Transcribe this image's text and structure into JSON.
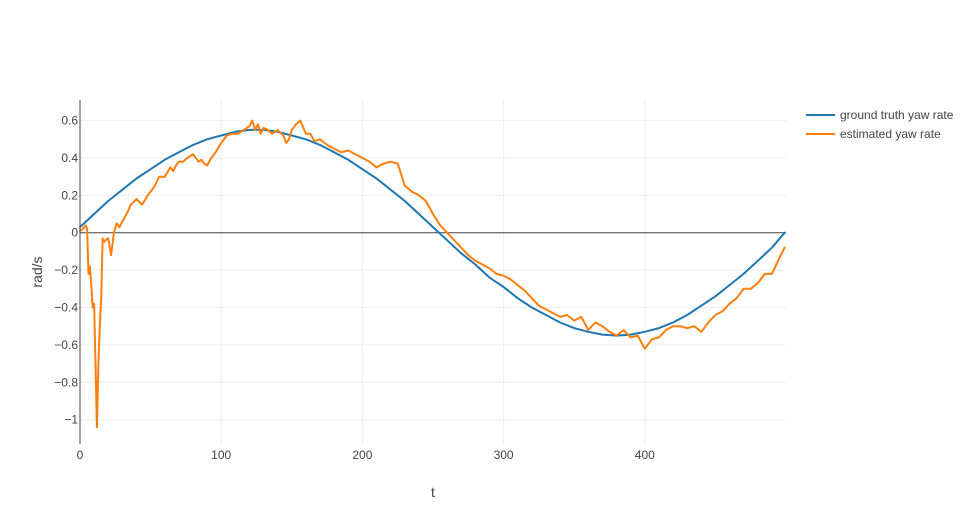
{
  "chart_data": {
    "type": "line",
    "xlabel": "t",
    "ylabel": "rad/s",
    "xlim": [
      0,
      500
    ],
    "ylim": [
      -1.13,
      0.71
    ],
    "x_ticks": [
      0,
      100,
      200,
      300,
      400
    ],
    "x_tick_labels": [
      "0",
      "100",
      "200",
      "300",
      "400"
    ],
    "y_ticks": [
      0.6,
      0.4,
      0.2,
      0,
      -0.2,
      -0.4,
      -0.6,
      -0.8,
      -1
    ],
    "y_tick_labels": [
      "0.6",
      "0.4",
      "0.2",
      "0",
      "−0.2",
      "−0.4",
      "−0.6",
      "−0.8",
      "−1"
    ],
    "grid": true,
    "legend": "top-right",
    "series": [
      {
        "name": "ground truth yaw rate",
        "color": "#1f77b4",
        "x": [
          0,
          10,
          20,
          30,
          40,
          50,
          60,
          70,
          80,
          90,
          100,
          110,
          120,
          130,
          140,
          150,
          160,
          170,
          180,
          190,
          200,
          210,
          220,
          230,
          240,
          250,
          260,
          270,
          280,
          290,
          300,
          310,
          320,
          330,
          340,
          350,
          360,
          370,
          380,
          390,
          400,
          410,
          420,
          430,
          440,
          450,
          460,
          470,
          480,
          490,
          499
        ],
        "y": [
          0.03,
          0.1,
          0.17,
          0.23,
          0.29,
          0.34,
          0.39,
          0.43,
          0.47,
          0.5,
          0.52,
          0.54,
          0.55,
          0.55,
          0.54,
          0.52,
          0.5,
          0.47,
          0.43,
          0.39,
          0.34,
          0.29,
          0.23,
          0.17,
          0.1,
          0.03,
          -0.04,
          -0.11,
          -0.17,
          -0.24,
          -0.29,
          -0.35,
          -0.4,
          -0.44,
          -0.48,
          -0.51,
          -0.53,
          -0.545,
          -0.55,
          -0.545,
          -0.53,
          -0.51,
          -0.48,
          -0.44,
          -0.39,
          -0.34,
          -0.28,
          -0.22,
          -0.15,
          -0.08,
          0
        ]
      },
      {
        "name": "estimated yaw rate",
        "color": "#ff7f0e",
        "x": [
          0,
          2,
          4,
          5,
          6,
          7,
          8,
          9,
          10,
          11,
          12,
          13,
          14,
          15,
          16,
          17,
          18,
          20,
          22,
          24,
          26,
          28,
          30,
          33,
          36,
          40,
          44,
          48,
          50,
          53,
          56,
          60,
          64,
          66,
          68,
          70,
          73,
          76,
          80,
          84,
          86,
          88,
          90,
          93,
          96,
          100,
          104,
          108,
          112,
          116,
          120,
          122,
          124,
          126,
          128,
          130,
          133,
          136,
          140,
          144,
          146,
          148,
          150,
          153,
          156,
          160,
          163,
          166,
          170,
          175,
          180,
          185,
          190,
          195,
          200,
          205,
          210,
          215,
          220,
          225,
          228,
          230,
          232,
          235,
          240,
          245,
          250,
          255,
          260,
          265,
          270,
          275,
          280,
          285,
          290,
          295,
          300,
          305,
          310,
          315,
          320,
          325,
          330,
          335,
          340,
          345,
          350,
          355,
          360,
          365,
          370,
          375,
          380,
          385,
          390,
          395,
          400,
          405,
          410,
          415,
          420,
          425,
          430,
          435,
          440,
          445,
          450,
          455,
          460,
          465,
          470,
          475,
          480,
          485,
          490,
          495,
          499
        ],
        "y": [
          0.01,
          0.02,
          0.04,
          0.02,
          -0.22,
          -0.18,
          -0.28,
          -0.4,
          -0.38,
          -0.7,
          -1.04,
          -0.7,
          -0.5,
          -0.35,
          -0.03,
          -0.05,
          -0.04,
          -0.03,
          -0.12,
          0.0,
          0.05,
          0.03,
          0.06,
          0.1,
          0.15,
          0.18,
          0.15,
          0.2,
          0.22,
          0.25,
          0.3,
          0.3,
          0.35,
          0.33,
          0.36,
          0.38,
          0.38,
          0.4,
          0.42,
          0.38,
          0.39,
          0.37,
          0.36,
          0.4,
          0.43,
          0.48,
          0.52,
          0.53,
          0.53,
          0.55,
          0.57,
          0.6,
          0.55,
          0.58,
          0.53,
          0.56,
          0.55,
          0.53,
          0.55,
          0.52,
          0.48,
          0.5,
          0.55,
          0.58,
          0.6,
          0.53,
          0.53,
          0.49,
          0.5,
          0.47,
          0.45,
          0.43,
          0.44,
          0.42,
          0.4,
          0.38,
          0.35,
          0.37,
          0.38,
          0.37,
          0.3,
          0.25,
          0.24,
          0.22,
          0.2,
          0.17,
          0.1,
          0.04,
          0.0,
          -0.04,
          -0.08,
          -0.12,
          -0.15,
          -0.17,
          -0.19,
          -0.22,
          -0.23,
          -0.25,
          -0.28,
          -0.31,
          -0.35,
          -0.39,
          -0.41,
          -0.43,
          -0.45,
          -0.44,
          -0.47,
          -0.45,
          -0.52,
          -0.48,
          -0.5,
          -0.53,
          -0.55,
          -0.52,
          -0.56,
          -0.55,
          -0.62,
          -0.57,
          -0.56,
          -0.52,
          -0.5,
          -0.5,
          -0.51,
          -0.5,
          -0.53,
          -0.48,
          -0.44,
          -0.42,
          -0.38,
          -0.35,
          -0.3,
          -0.3,
          -0.27,
          -0.22,
          -0.22,
          -0.14,
          -0.08
        ]
      }
    ]
  }
}
